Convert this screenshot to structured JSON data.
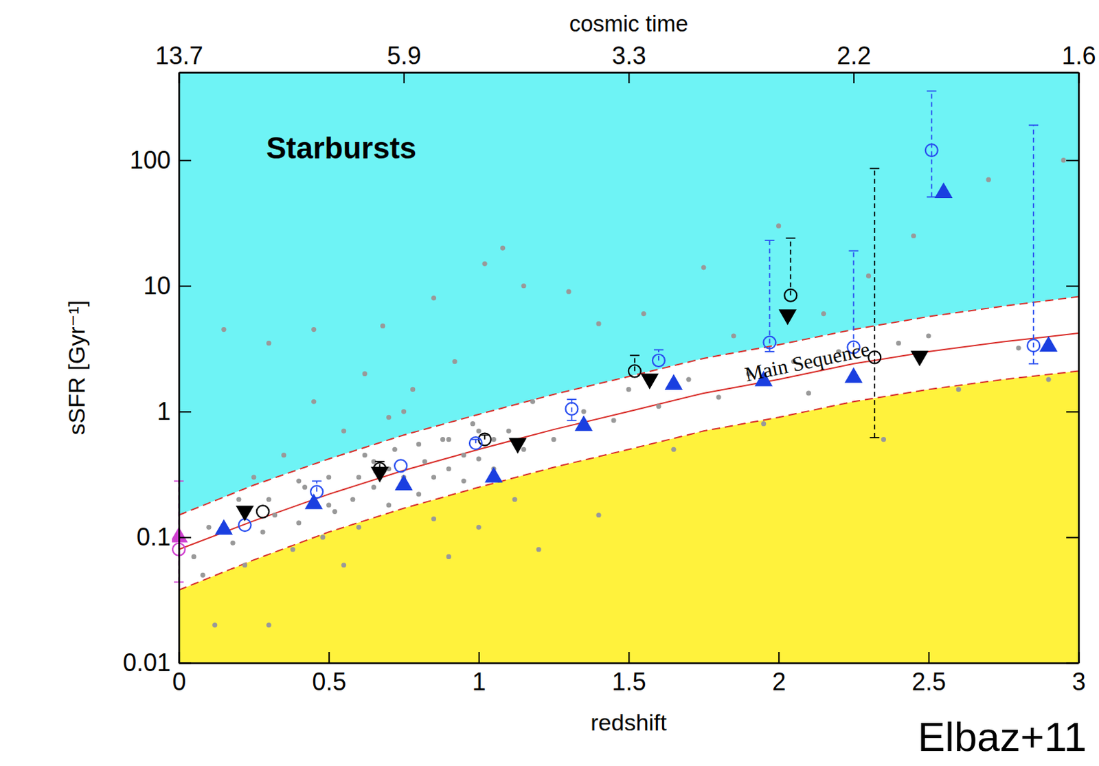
{
  "chart_data": {
    "type": "scatter",
    "x2label": "cosmic time",
    "xlabel": "redshift",
    "ylabel": "sSFR [Gyr⁻¹]",
    "annotations": [
      "Starbursts",
      "Main Sequence",
      "Elbaz+11"
    ],
    "log": "y",
    "xlim": [
      0,
      3
    ],
    "xticks": [
      0,
      0.5,
      1,
      1.5,
      2,
      2.5,
      3
    ],
    "x2ticks": [
      {
        "value": 0,
        "label": "13.7"
      },
      {
        "value": 0.75,
        "label": "5.9"
      },
      {
        "value": 1.5,
        "label": "3.3"
      },
      {
        "value": 2.25,
        "label": "2.2"
      },
      {
        "value": 3,
        "label": "1.6"
      }
    ],
    "ylim": [
      0.01,
      500
    ],
    "yticks": [
      0.01,
      0.1,
      1,
      10,
      100
    ],
    "colors": [
      "#6ef3f5",
      "#ffffff",
      "#fff23c"
    ],
    "series": [
      {
        "type": "line",
        "line_style": "solid",
        "color": "#d9302c",
        "x": [
          0,
          0.25,
          0.5,
          0.75,
          1,
          1.25,
          1.5,
          1.75,
          2,
          2.25,
          2.5,
          2.75,
          3
        ],
        "values": [
          0.08,
          0.135,
          0.22,
          0.34,
          0.5,
          0.72,
          1.0,
          1.4,
          1.8,
          2.4,
          3.0,
          3.6,
          4.2
        ]
      },
      {
        "type": "line",
        "line_style": "dashed",
        "color": "#d9302c",
        "x": [
          0,
          0.25,
          0.5,
          0.75,
          1,
          1.25,
          1.5,
          1.75,
          2,
          2.25,
          2.5,
          2.75,
          3
        ],
        "values": [
          0.15,
          0.26,
          0.42,
          0.65,
          0.95,
          1.37,
          1.9,
          2.65,
          3.4,
          4.5,
          5.7,
          6.9,
          8.2
        ]
      },
      {
        "type": "line",
        "line_style": "dashed",
        "color": "#d9302c",
        "x": [
          0,
          0.25,
          0.5,
          0.75,
          1,
          1.25,
          1.5,
          1.75,
          2,
          2.25,
          2.5,
          2.75,
          3
        ],
        "values": [
          0.038,
          0.066,
          0.11,
          0.17,
          0.25,
          0.36,
          0.5,
          0.7,
          0.9,
          1.2,
          1.5,
          1.8,
          2.1
        ]
      },
      {
        "type": "scatter",
        "marker": "circle",
        "color": "#999999",
        "x": [
          0.05,
          0.08,
          0.1,
          0.12,
          0.15,
          0.18,
          0.2,
          0.22,
          0.25,
          0.28,
          0.3,
          0.32,
          0.35,
          0.38,
          0.4,
          0.42,
          0.45,
          0.48,
          0.5,
          0.52,
          0.55,
          0.58,
          0.6,
          0.62,
          0.65,
          0.68,
          0.7,
          0.72,
          0.75,
          0.78,
          0.8,
          0.82,
          0.85,
          0.88,
          0.9,
          0.92,
          0.95,
          0.98,
          1.0,
          1.02,
          1.05,
          1.08,
          1.1,
          1.12,
          1.15,
          1.18,
          1.2,
          1.25,
          1.3,
          1.35,
          1.4,
          1.45,
          1.5,
          1.55,
          1.6,
          1.65,
          1.7,
          1.75,
          1.8,
          1.85,
          1.9,
          1.95,
          2.0,
          2.05,
          2.1,
          2.15,
          2.2,
          2.25,
          2.3,
          2.35,
          2.4,
          2.45,
          2.5,
          2.6,
          2.7,
          2.8,
          2.9,
          2.95,
          0.3,
          0.4,
          0.5,
          0.6,
          0.65,
          0.7,
          0.8,
          0.85,
          0.9,
          0.95,
          1.0,
          1.05,
          0.75,
          0.55,
          0.9,
          1.0,
          0.62,
          0.45,
          0.3,
          0.85,
          1.15,
          1.4,
          0.7
        ],
        "values": [
          0.07,
          0.05,
          0.12,
          0.02,
          4.5,
          0.09,
          0.2,
          0.06,
          0.3,
          0.11,
          0.02,
          0.15,
          0.45,
          0.08,
          0.13,
          0.25,
          4.5,
          0.1,
          0.3,
          0.16,
          0.7,
          0.2,
          0.12,
          0.45,
          0.25,
          4.8,
          0.18,
          0.5,
          0.3,
          1.5,
          0.22,
          0.4,
          0.14,
          0.6,
          0.35,
          2.5,
          0.28,
          0.8,
          0.42,
          15,
          0.35,
          20,
          0.7,
          0.2,
          0.5,
          1.2,
          0.08,
          0.6,
          9,
          1.0,
          0.15,
          0.85,
          1.5,
          6,
          1.1,
          0.5,
          1.8,
          14,
          1.3,
          4,
          2.0,
          0.8,
          30,
          2.5,
          1.4,
          6,
          3.0,
          2.0,
          12,
          0.6,
          3.5,
          25,
          4.0,
          1.5,
          70,
          3.2,
          1.8,
          100,
          0.2,
          0.28,
          0.18,
          0.3,
          0.4,
          0.35,
          0.55,
          0.3,
          0.6,
          0.45,
          0.7,
          0.6,
          1.0,
          0.06,
          0.07,
          0.12,
          2,
          1.2,
          3.5,
          8,
          10,
          5,
          0.9
        ]
      },
      {
        "type": "scatter",
        "marker": "circle-open",
        "color": "#000000",
        "x": [
          0.28,
          0.67,
          1.02,
          1.52,
          2.04,
          2.32
        ],
        "values": [
          0.16,
          0.35,
          0.6,
          2.1,
          8.4,
          2.7
        ],
        "lower": [
          null,
          null,
          null,
          null,
          null,
          0.62
        ],
        "upper": [
          null,
          0.4,
          0.65,
          2.8,
          24,
          86
        ]
      },
      {
        "type": "scatter",
        "marker": "circle-open",
        "color": "#2a4ff0",
        "x": [
          0.22,
          0.46,
          0.74,
          0.99,
          1.31,
          1.6,
          1.97,
          2.25,
          2.51,
          2.85
        ],
        "values": [
          0.125,
          0.23,
          0.37,
          0.56,
          1.05,
          2.55,
          3.55,
          3.25,
          120,
          3.35
        ],
        "lower": [
          null,
          null,
          null,
          null,
          0.85,
          null,
          3.0,
          null,
          51,
          2.4
        ],
        "upper": [
          null,
          0.28,
          null,
          0.6,
          1.25,
          3.1,
          23,
          19,
          355,
          190
        ]
      },
      {
        "type": "scatter",
        "marker": "triangle-down",
        "color": "#000000",
        "x": [
          0.22,
          0.67,
          1.13,
          1.57,
          2.03,
          2.47
        ],
        "values": [
          0.162,
          0.33,
          0.56,
          1.82,
          5.9,
          2.77
        ]
      },
      {
        "type": "scatter",
        "marker": "triangle-up",
        "color": "#1a3fe0",
        "x": [
          0.15,
          0.45,
          0.75,
          1.05,
          1.35,
          1.65,
          1.95,
          2.25,
          2.55,
          2.9
        ],
        "values": [
          0.115,
          0.184,
          0.26,
          0.3,
          0.77,
          1.64,
          1.75,
          1.86,
          55,
          3.3
        ]
      },
      {
        "type": "scatter",
        "marker": "circle-open",
        "color": "#d040d0",
        "x": [
          0
        ],
        "values": [
          0.08
        ],
        "lower": [
          0.044
        ],
        "upper": [
          0.28
        ]
      },
      {
        "type": "scatter",
        "marker": "triangle-up",
        "color": "#d040d0",
        "x": [
          0
        ],
        "values": [
          0.1
        ]
      }
    ]
  }
}
